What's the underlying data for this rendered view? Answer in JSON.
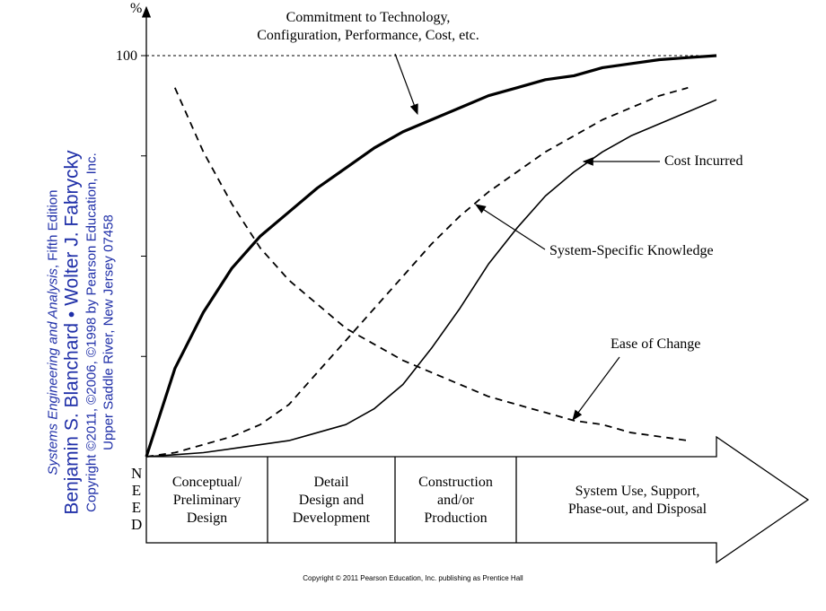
{
  "chart_data": {
    "type": "line",
    "y_label": "%",
    "xlim": [
      0,
      100
    ],
    "ylim": [
      0,
      100
    ],
    "yticks": [
      100
    ],
    "minor_yticks": [
      25,
      50,
      75
    ],
    "x": [
      0,
      5,
      10,
      15,
      20,
      25,
      30,
      35,
      40,
      45,
      50,
      55,
      60,
      65,
      70,
      75,
      80,
      85,
      90,
      95,
      100
    ],
    "series": [
      {
        "name": "Commitment to Technology,\nConfiguration, Performance, Cost, etc.",
        "color": "#000000",
        "width": 3.2,
        "dashed": false,
        "values": [
          0,
          22,
          36,
          47,
          55,
          61,
          67,
          72,
          77,
          81,
          84,
          87,
          90,
          92,
          94,
          95,
          97,
          98,
          99,
          99.5,
          100
        ]
      },
      {
        "name": "Cost Incurred",
        "color": "#000000",
        "width": 1.6,
        "dashed": false,
        "values": [
          0,
          0.5,
          1,
          2,
          3,
          4,
          6,
          8,
          12,
          18,
          27,
          37,
          48,
          57,
          65,
          71,
          76,
          80,
          83,
          86,
          89
        ]
      },
      {
        "name": "System-Specific Knowledge",
        "color": "#000000",
        "width": 1.8,
        "dashed": true,
        "values": [
          0,
          1,
          3,
          5,
          8,
          13,
          21,
          29,
          37,
          45,
          53,
          60,
          66,
          71,
          76,
          80,
          84,
          87,
          90,
          92,
          null
        ]
      },
      {
        "name": "Ease of Change",
        "color": "#000000",
        "width": 1.8,
        "dashed": true,
        "values": [
          null,
          92,
          76,
          63,
          52,
          44,
          38,
          32,
          28,
          24,
          21,
          18,
          15,
          13,
          11,
          9,
          8,
          6,
          5,
          4,
          null
        ]
      }
    ],
    "start_label": "NEED",
    "phases": [
      "Conceptual/\nPreliminary\nDesign",
      "Detail\nDesign and\nDevelopment",
      "Construction\nand/or\nProduction",
      "System Use, Support,\nPhase-out, and Disposal"
    ]
  },
  "side_text": {
    "book": "Systems Engineering and Analysis",
    "edition": ", Fifth Edition",
    "authors": "Benjamin S. Blanchard • Wolter J. Fabrycky",
    "copyright": "Copyright ©2011, ©2006, ©1998 by Pearson Education, Inc.",
    "address": "Upper Saddle River, New Jersey 07458"
  },
  "footer": "Copyright © 2011 Pearson Education, Inc. publishing as Prentice Hall"
}
